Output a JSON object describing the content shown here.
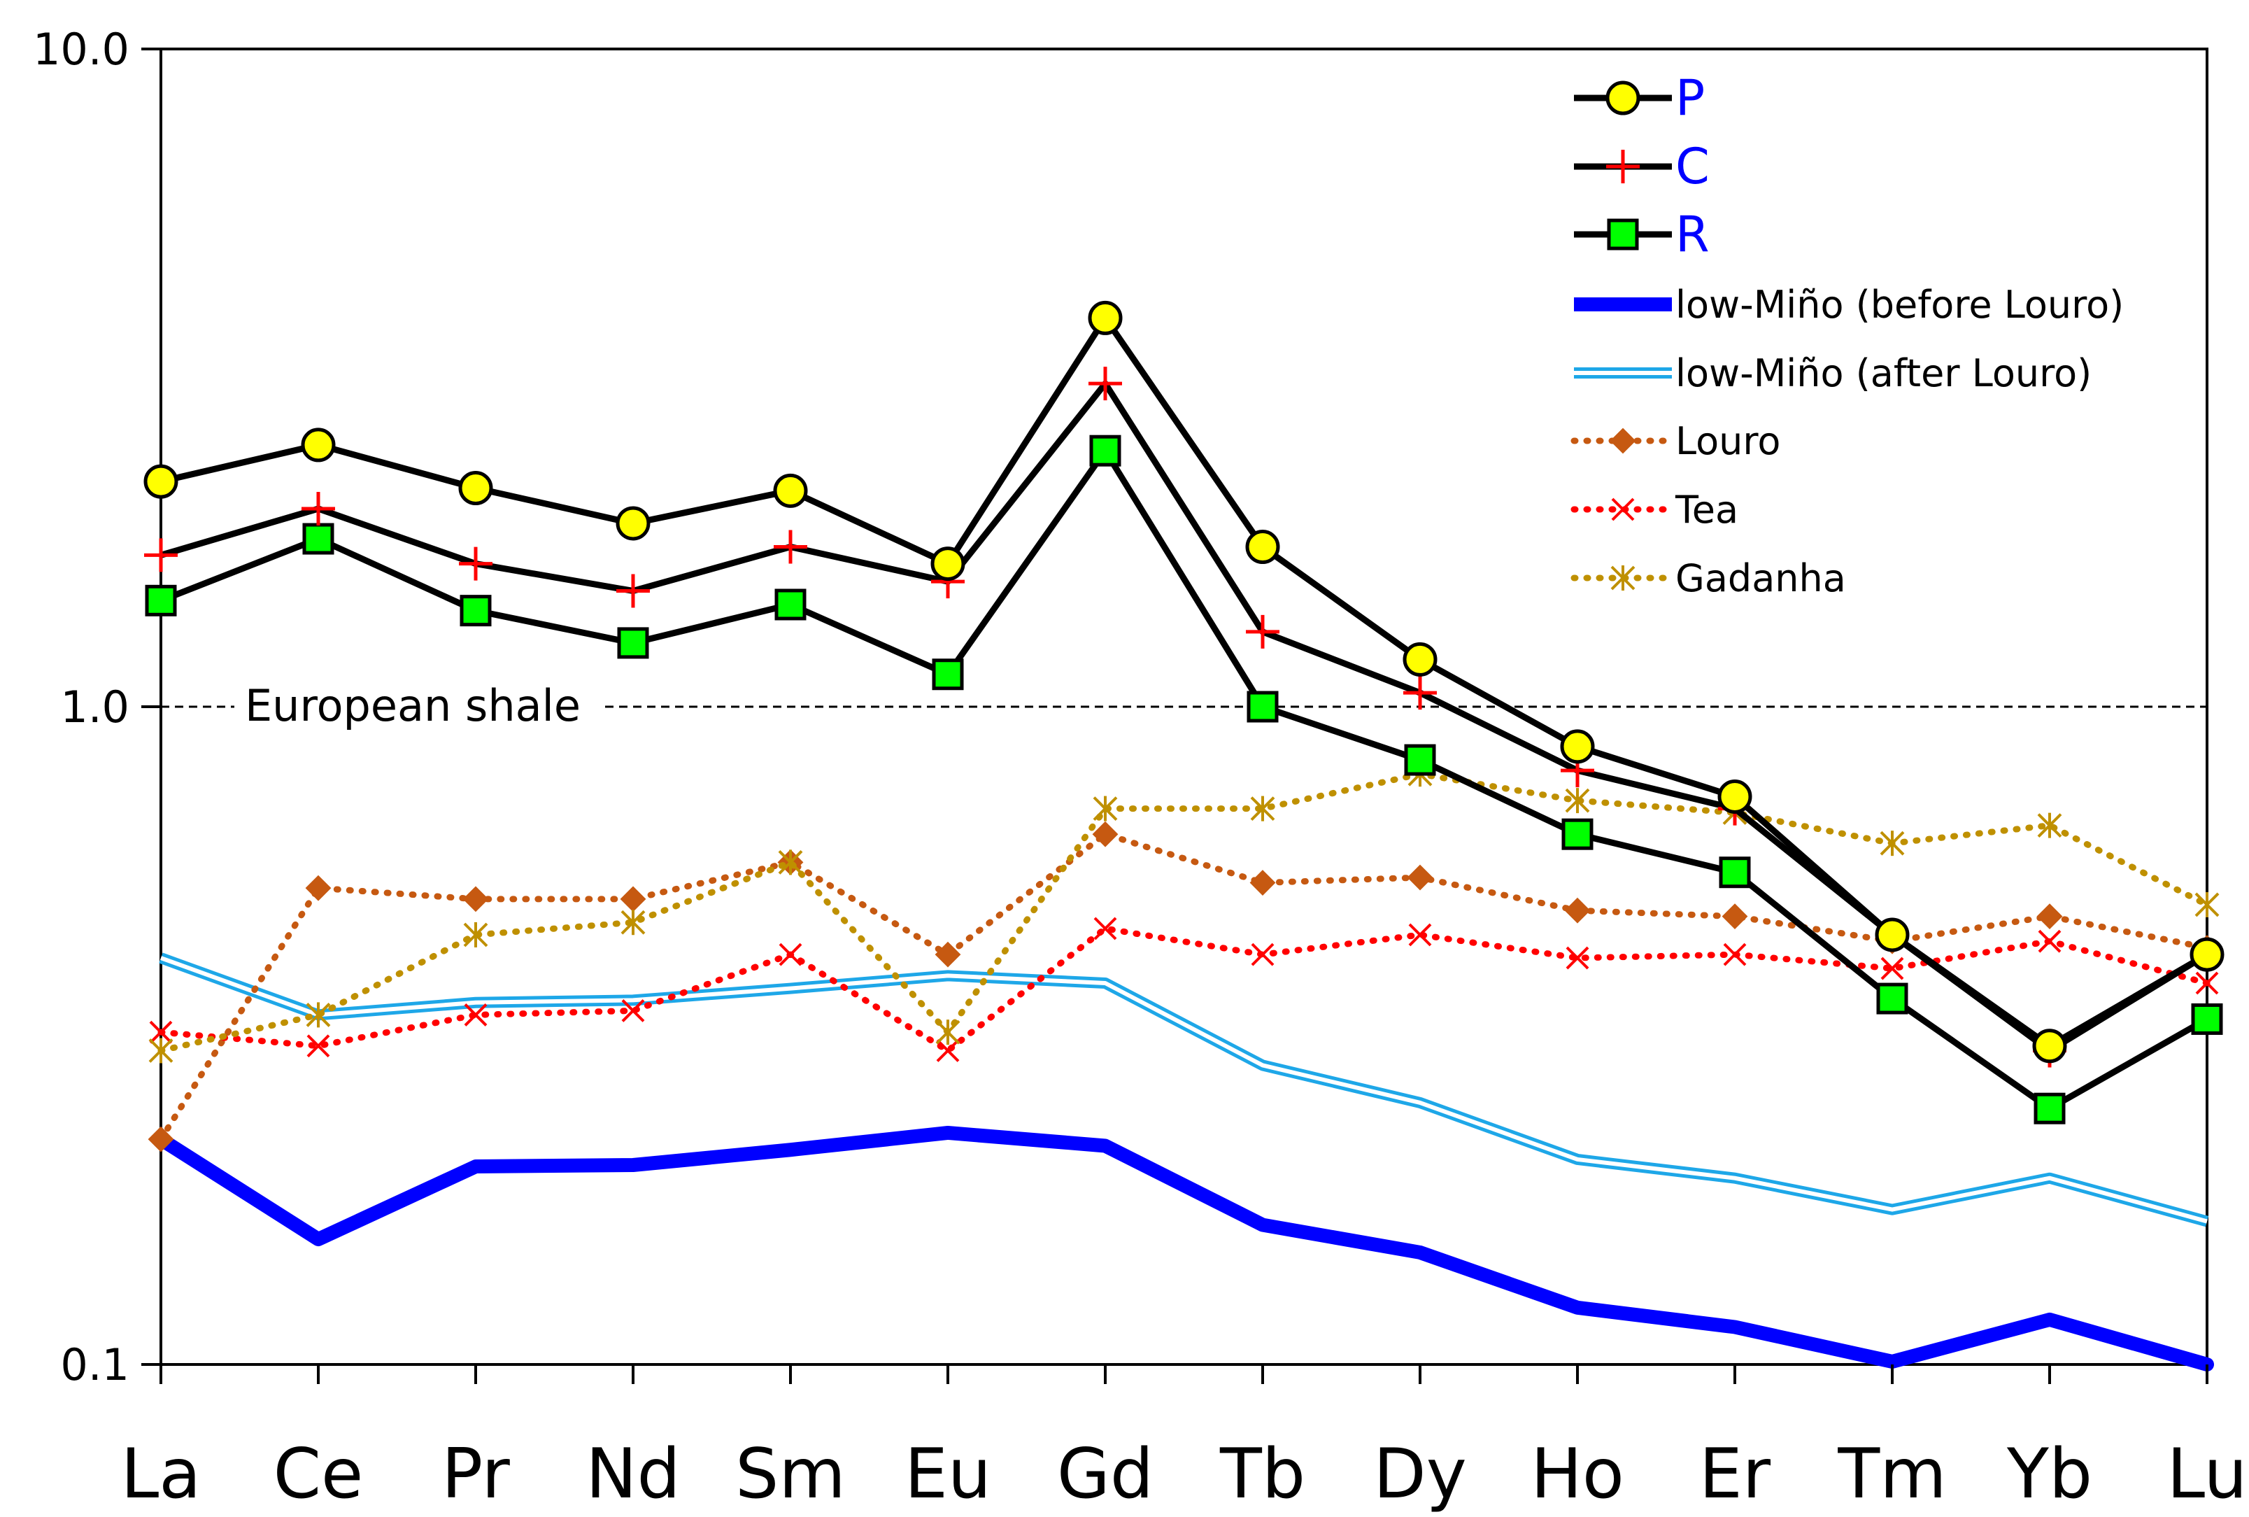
{
  "chart_data": {
    "type": "line",
    "y_scale": "log",
    "ylim": [
      0.1,
      10.0
    ],
    "y_ticks": [
      "10.0",
      "1.0",
      "0.1"
    ],
    "categories": [
      "La",
      "Ce",
      "Pr",
      "Nd",
      "Sm",
      "Eu",
      "Gd",
      "Tb",
      "Dy",
      "Ho",
      "Er",
      "Tm",
      "Yb",
      "Lu"
    ],
    "reference_line": {
      "label": "European shale",
      "value": 1.0
    },
    "series": [
      {
        "name": "P",
        "style": "black-line-circle",
        "line_color": "#000000",
        "marker_color": "#ffff00",
        "values": [
          2.2,
          2.5,
          2.15,
          1.9,
          2.13,
          1.65,
          3.9,
          1.75,
          1.18,
          0.87,
          0.73,
          0.45,
          0.305,
          0.42
        ]
      },
      {
        "name": "C",
        "style": "black-line-plus",
        "line_color": "#000000",
        "marker_color": "#ff0000",
        "values": [
          1.7,
          2.0,
          1.65,
          1.5,
          1.75,
          1.55,
          3.1,
          1.3,
          1.05,
          0.8,
          0.7,
          0.45,
          0.3,
          0.42
        ]
      },
      {
        "name": "R",
        "style": "black-line-square",
        "line_color": "#000000",
        "marker_color": "#00ff00",
        "values": [
          1.45,
          1.8,
          1.4,
          1.25,
          1.43,
          1.12,
          2.45,
          1.0,
          0.83,
          0.64,
          0.56,
          0.36,
          0.245,
          0.335
        ]
      },
      {
        "name": "low-Miño (before Louro)",
        "style": "thick-blue",
        "line_color": "#0000ff",
        "values": [
          0.22,
          0.155,
          0.2,
          0.201,
          0.212,
          0.225,
          0.215,
          0.163,
          0.148,
          0.122,
          0.114,
          0.101,
          0.117,
          0.1
        ]
      },
      {
        "name": "low-Miño (after Louro)",
        "style": "double-light-blue",
        "line_color": "#1ea7e8",
        "values": [
          0.415,
          0.34,
          0.355,
          0.358,
          0.373,
          0.39,
          0.38,
          0.285,
          0.25,
          0.205,
          0.192,
          0.172,
          0.192,
          0.165
        ]
      },
      {
        "name": "Louro",
        "style": "dotted-diamond",
        "line_color": "#c65911",
        "values": [
          0.22,
          0.53,
          0.51,
          0.51,
          0.58,
          0.42,
          0.64,
          0.54,
          0.55,
          0.49,
          0.48,
          0.44,
          0.48,
          0.43
        ]
      },
      {
        "name": "Tea",
        "style": "dotted-x",
        "line_color": "#ff0000",
        "values": [
          0.32,
          0.305,
          0.34,
          0.345,
          0.42,
          0.3,
          0.46,
          0.42,
          0.45,
          0.415,
          0.42,
          0.4,
          0.44,
          0.38
        ]
      },
      {
        "name": "Gadanha",
        "style": "dotted-star",
        "line_color": "#bf9000",
        "values": [
          0.3,
          0.34,
          0.45,
          0.47,
          0.58,
          0.32,
          0.7,
          0.7,
          0.79,
          0.72,
          0.69,
          0.62,
          0.66,
          0.5
        ]
      }
    ]
  }
}
